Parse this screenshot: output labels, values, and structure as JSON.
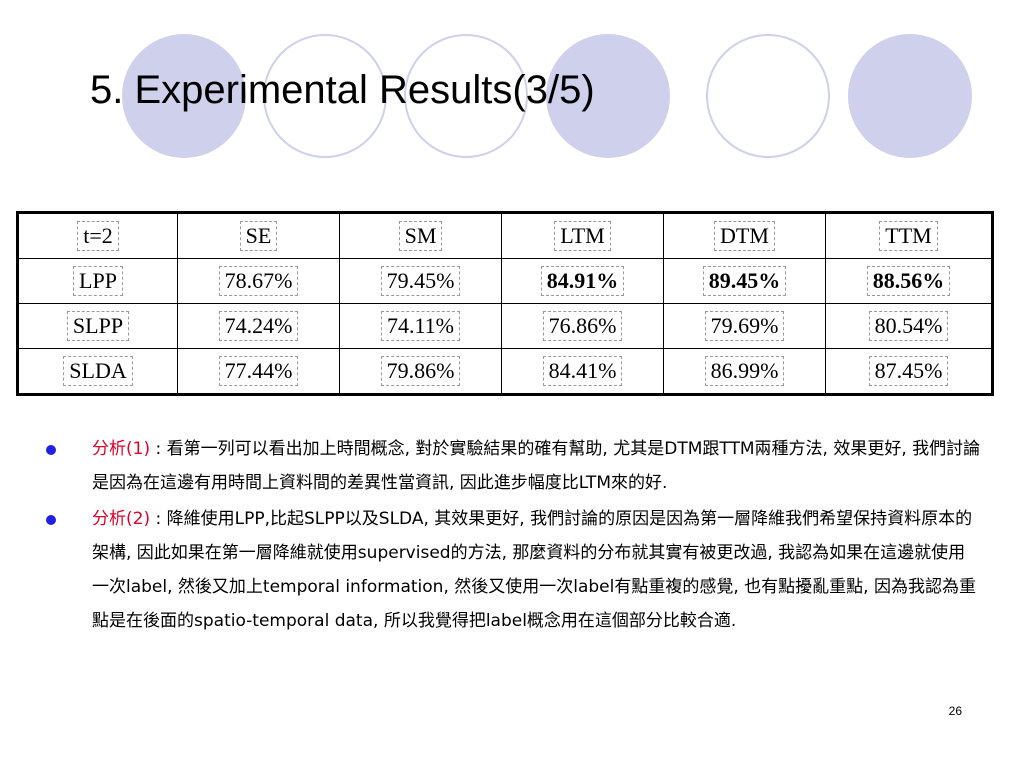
{
  "slide": {
    "title": "5.  Experimental Results(3/5)",
    "page_number": "26",
    "accent_color": "#cfd0ec",
    "bullet_color": "#1f22e0",
    "label_color": "#e0002a"
  },
  "table": {
    "header": [
      "t=2",
      "SE",
      "SM",
      "LTM",
      "DTM",
      "TTM"
    ],
    "rows": [
      {
        "name": "LPP",
        "values": [
          "78.67%",
          "79.45%",
          "84.91%",
          "89.45%",
          "88.56%"
        ],
        "bold": [
          false,
          false,
          true,
          true,
          true
        ]
      },
      {
        "name": "SLPP",
        "values": [
          "74.24%",
          "74.11%",
          "76.86%",
          "79.69%",
          "80.54%"
        ],
        "bold": [
          false,
          false,
          false,
          false,
          false
        ]
      },
      {
        "name": "SLDA",
        "values": [
          "77.44%",
          "79.86%",
          "84.41%",
          "86.99%",
          "87.45%"
        ],
        "bold": [
          false,
          false,
          false,
          false,
          false
        ]
      }
    ]
  },
  "bullets": [
    {
      "label": "分析(1)",
      "text": " : 看第一列可以看出加上時間概念, 對於實驗結果的確有幫助, 尤其是DTM跟TTM兩種方法, 效果更好, 我們討論是因為在這邊有用時間上資料間的差異性當資訊, 因此進步幅度比LTM來的好."
    },
    {
      "label": "分析(2)",
      "text": " : 降維使用LPP,比起SLPP以及SLDA, 其效果更好, 我們討論的原因是因為第一層降維我們希望保持資料原本的架構, 因此如果在第一層降維就使用supervised的方法, 那麼資料的分布就其實有被更改過, 我認為如果在這邊就使用一次label, 然後又加上temporal information, 然後又使用一次label有點重複的感覺, 也有點擾亂重點, 因為我認為重點是在後面的spatio-temporal data, 所以我覺得把label概念用在這個部分比較合適."
    }
  ]
}
